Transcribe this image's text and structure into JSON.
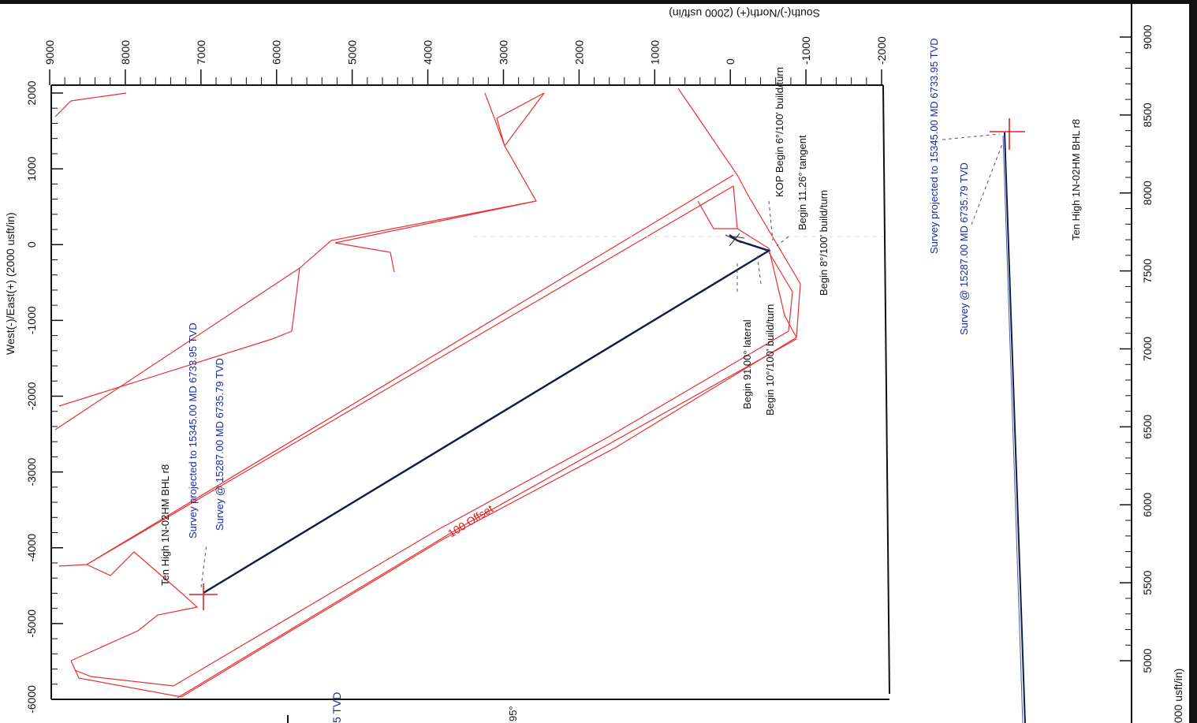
{
  "chart_data": [
    {
      "type": "line",
      "view": "plan",
      "xlabel": "West(-)/East(+) (2000 usft/in)",
      "ylabel": "South(-)/North(+) (2000 usft/in)",
      "x_ticks": [
        -6000,
        -5000,
        -4000,
        -3000,
        -2000,
        -1000,
        0,
        1000,
        2000
      ],
      "y_ticks": [
        9000,
        8000,
        7000,
        6000,
        5000,
        4000,
        3000,
        2000,
        1000,
        0,
        -1000,
        -2000
      ],
      "xlim": [
        -6000,
        2000
      ],
      "ylim": [
        -2000,
        9000
      ],
      "series": [
        {
          "points": [
            [
              0,
              -500
            ],
            [
              -100,
              0
            ],
            [
              -600,
              900
            ],
            [
              -4600,
              7000
            ]
          ]
        }
      ],
      "annotations": [
        "KOP Begin 6°/100' build/turn",
        "Begin 11.26° tangent",
        "Begin 8°/100' build/turn",
        "Begin 10°/100' build/turn",
        "Begin 91.00° lateral",
        "Ten High 1N-02HM BHL r8",
        "Survey projected to 15345.00 MD 6733.95 TVD",
        "Survey @ 15287.00 MD 6735.79 TVD",
        "100 Offset"
      ]
    },
    {
      "type": "line",
      "view": "section",
      "x_ticks": [
        9000,
        8500,
        8000,
        7500,
        7000,
        6500,
        6000,
        5500,
        5000
      ],
      "xlabel_partial": "000 usft/in)",
      "annotations": [
        "Survey projected to 15345.00 MD 6733.95 TVD",
        "Survey @ 15287.00 MD 6735.79 TVD",
        "Ten High 1N-02HM BHL r8"
      ]
    }
  ],
  "colors": {
    "boundary": "#e83030",
    "wellpath": "#121a4a",
    "survey_text": "#1a2a9a"
  },
  "fragments": {
    "tvd": "5 TVD",
    "deg": "95°"
  }
}
